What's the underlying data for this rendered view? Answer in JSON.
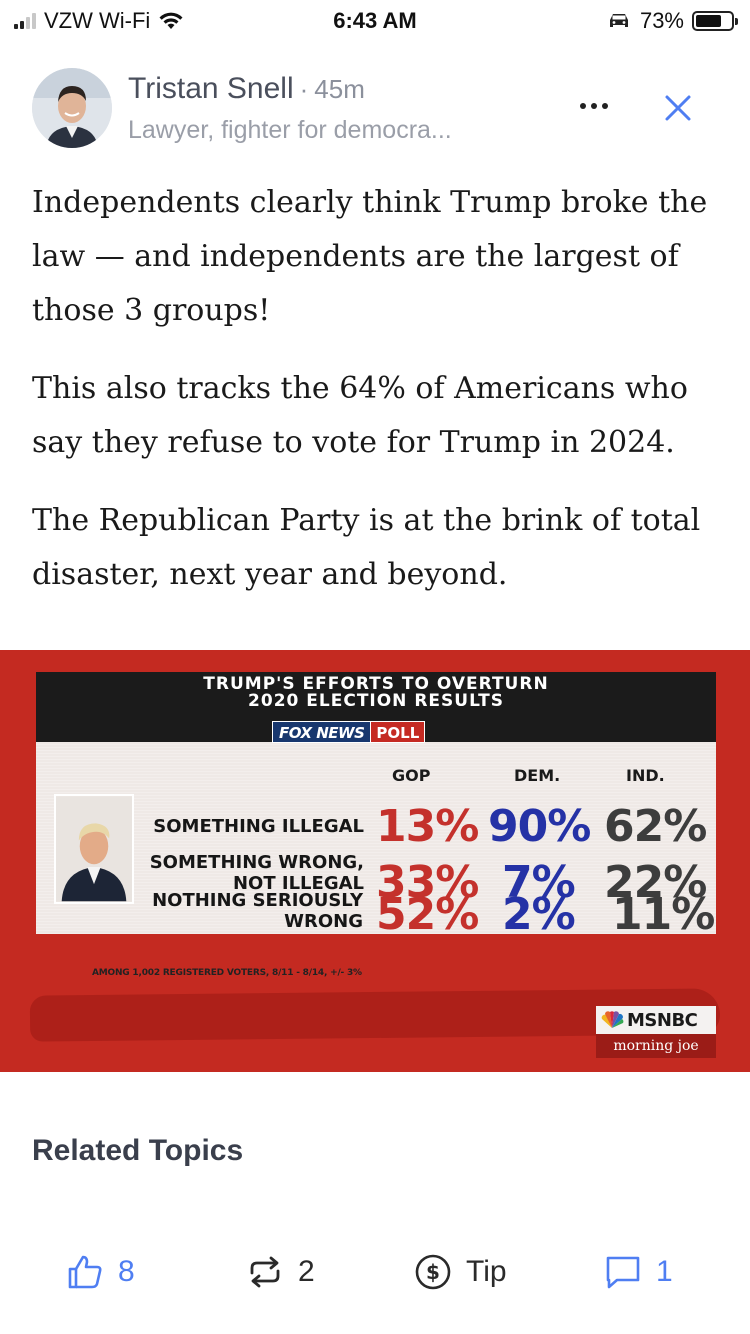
{
  "status_bar": {
    "carrier": "VZW Wi-Fi",
    "time": "6:43 AM",
    "battery_percent": "73%",
    "battery_level": 0.73,
    "signal_bars_active": 2,
    "signal_bars_total": 4,
    "icons": [
      "signal-icon",
      "wifi-icon",
      "car-icon",
      "battery-icon"
    ]
  },
  "post": {
    "author_name": "Tristan Snell",
    "separator": "·",
    "time_ago": "45m",
    "author_bio": "Lawyer, fighter for democra...",
    "paragraphs": [
      "Independents clearly think Trump broke the law — and independents are the largest of those 3 groups!",
      "This also tracks the 64% of Americans who say they refuse to vote for Trump in 2024.",
      "The Republican Party is at the brink of total disaster, next year and beyond."
    ]
  },
  "poll_graphic": {
    "title_line1": "TRUMP'S EFFORTS TO OVERTURN",
    "title_line2": "2020 ELECTION RESULTS",
    "fox_logo": "FOX NEWS",
    "poll_word": "POLL",
    "columns": [
      "GOP",
      "DEM.",
      "IND."
    ],
    "rows": [
      {
        "label_line1": "SOMETHING ILLEGAL",
        "label_line2": "",
        "gop": "13%",
        "dem": "90%",
        "ind": "62%"
      },
      {
        "label_line1": "SOMETHING WRONG,",
        "label_line2": "NOT ILLEGAL",
        "gop": "33%",
        "dem": "7%",
        "ind": "22%"
      },
      {
        "label_line1": "NOTHING SERIOUSLY",
        "label_line2": "WRONG",
        "gop": "52%",
        "dem": "2%",
        "ind": "11%"
      }
    ],
    "footnote": "AMONG 1,002 REGISTERED VOTERS, 8/11 - 8/14, +/- 3%",
    "network": "MSNBC",
    "show": "morning joe",
    "colors": {
      "gop": "#c4312c",
      "dem": "#2532a6",
      "ind": "#3d3d3d",
      "background": "#c42a21"
    }
  },
  "related": {
    "heading": "Related Topics"
  },
  "actions": {
    "like_count": "8",
    "restack_count": "2",
    "tip_label": "Tip",
    "comment_count": "1",
    "accent": "#4f7ef2"
  }
}
